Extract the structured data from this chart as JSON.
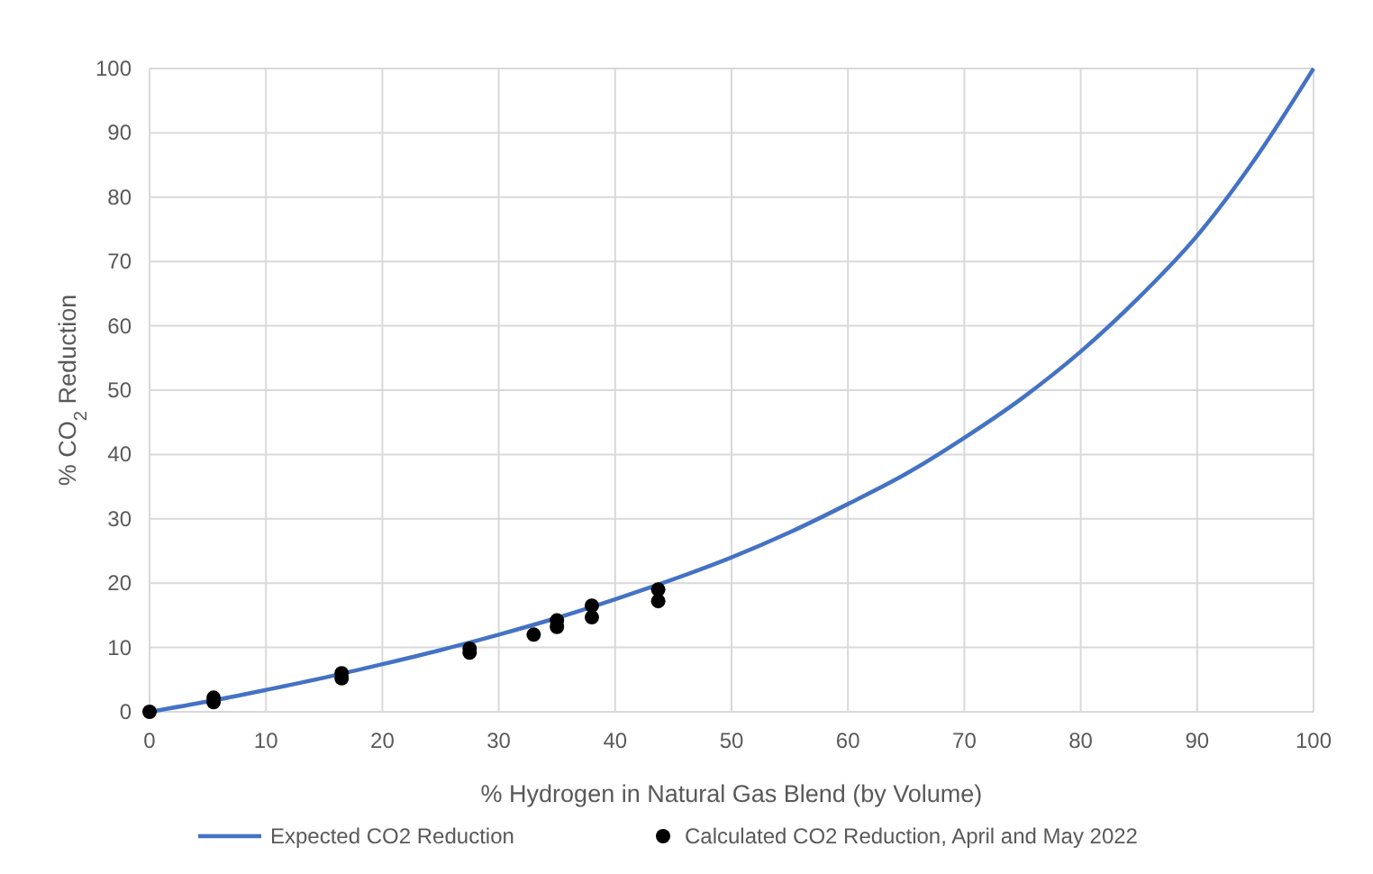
{
  "chart_data": {
    "type": "line",
    "xlabel": "% Hydrogen in Natural Gas Blend (by Volume)",
    "ylabel": "% CO$_{2}$ Reduction",
    "xlim": [
      0,
      100
    ],
    "ylim": [
      0,
      100
    ],
    "xticks": [
      0,
      10,
      20,
      30,
      40,
      50,
      60,
      70,
      80,
      90,
      100
    ],
    "yticks": [
      0,
      10,
      20,
      30,
      40,
      50,
      60,
      70,
      80,
      90,
      100
    ],
    "grid": true,
    "legend": "bottom",
    "series": [
      {
        "name": "Expected CO2 Reduction",
        "color": "#4472c4",
        "marker": "none",
        "x": [
          0,
          5,
          10,
          15,
          20,
          25,
          30,
          35,
          40,
          45,
          50,
          55,
          60,
          65,
          70,
          75,
          80,
          85,
          90,
          95,
          100
        ],
        "values": [
          0,
          1.6,
          3.4,
          5.3,
          7.4,
          9.6,
          12,
          14.6,
          17.5,
          20.6,
          24,
          27.9,
          32.3,
          37,
          42.6,
          48.8,
          56,
          64.4,
          74,
          86,
          100
        ]
      },
      {
        "type": "scatter",
        "name": "Calculated CO2 Reduction, April and May 2022",
        "color": "#000000",
        "marker": "circle",
        "x": [
          0,
          5.5,
          5.5,
          16.5,
          16.5,
          27.5,
          27.5,
          33,
          35,
          35,
          38,
          38,
          43.7,
          43.7
        ],
        "values": [
          0,
          1.5,
          2.2,
          5.2,
          6,
          9.2,
          9.8,
          12,
          13.2,
          14.2,
          14.7,
          16.5,
          17.2,
          19
        ]
      }
    ]
  }
}
